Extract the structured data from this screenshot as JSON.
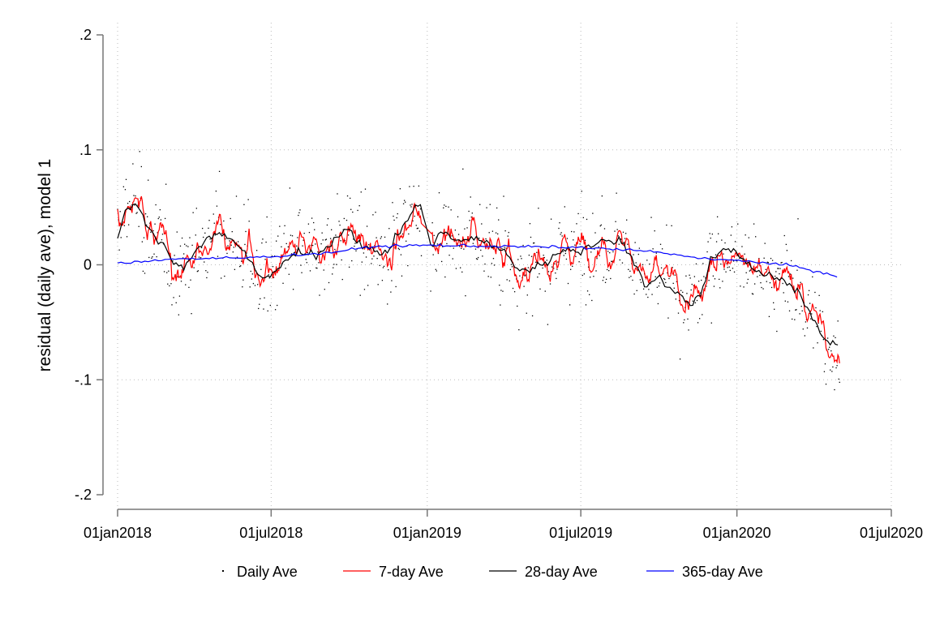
{
  "chart_data": {
    "type": "line",
    "title": "",
    "xlabel": "",
    "ylabel": "residual (daily ave), model 1",
    "x_range": [
      "2018-01-01",
      "2020-07-01"
    ],
    "ylim": [
      -0.2,
      0.2
    ],
    "x_ticks": [
      {
        "date": "2018-01-01",
        "label": "01jan2018"
      },
      {
        "date": "2018-07-01",
        "label": "01jul2018"
      },
      {
        "date": "2019-01-01",
        "label": "01jan2019"
      },
      {
        "date": "2019-07-01",
        "label": "01jul2019"
      },
      {
        "date": "2020-01-01",
        "label": "01jan2020"
      },
      {
        "date": "2020-07-01",
        "label": "01jul2020"
      }
    ],
    "y_ticks": [
      {
        "value": -0.2,
        "label": "-.2"
      },
      {
        "value": -0.1,
        "label": "-.1"
      },
      {
        "value": 0,
        "label": "0"
      },
      {
        "value": 0.1,
        "label": ".1"
      },
      {
        "value": 0.2,
        "label": ".2"
      }
    ],
    "grid": true,
    "legend_position": "bottom",
    "colors": {
      "daily": "#000000",
      "ma7": "#ff0000",
      "ma28": "#000000",
      "ma365": "#0000ff",
      "grid": "#bbbbbb",
      "axis": "#777777"
    },
    "series": [
      {
        "name": "28-day Ave",
        "style": "line",
        "points": [
          [
            "2018-01-01",
            0.023
          ],
          [
            "2018-01-10",
            0.045
          ],
          [
            "2018-01-20",
            0.055
          ],
          [
            "2018-02-01",
            0.04
          ],
          [
            "2018-02-15",
            0.025
          ],
          [
            "2018-03-01",
            0.012
          ],
          [
            "2018-03-15",
            -0.005
          ],
          [
            "2018-04-01",
            0.008
          ],
          [
            "2018-04-15",
            0.022
          ],
          [
            "2018-05-01",
            0.028
          ],
          [
            "2018-05-15",
            0.02
          ],
          [
            "2018-06-01",
            0.012
          ],
          [
            "2018-06-15",
            -0.008
          ],
          [
            "2018-07-01",
            -0.012
          ],
          [
            "2018-07-15",
            0.002
          ],
          [
            "2018-08-01",
            0.01
          ],
          [
            "2018-08-15",
            0.008
          ],
          [
            "2018-09-01",
            0.012
          ],
          [
            "2018-09-15",
            0.025
          ],
          [
            "2018-10-01",
            0.032
          ],
          [
            "2018-10-15",
            0.018
          ],
          [
            "2018-11-01",
            0.01
          ],
          [
            "2018-11-15",
            0.012
          ],
          [
            "2018-12-01",
            0.03
          ],
          [
            "2018-12-15",
            0.048
          ],
          [
            "2018-12-25",
            0.052
          ],
          [
            "2019-01-05",
            0.014
          ],
          [
            "2019-01-15",
            0.03
          ],
          [
            "2019-02-01",
            0.022
          ],
          [
            "2019-02-15",
            0.02
          ],
          [
            "2019-03-01",
            0.024
          ],
          [
            "2019-03-15",
            0.018
          ],
          [
            "2019-04-01",
            0.012
          ],
          [
            "2019-04-15",
            -0.002
          ],
          [
            "2019-05-01",
            -0.005
          ],
          [
            "2019-05-15",
            0.0
          ],
          [
            "2019-06-01",
            0.008
          ],
          [
            "2019-06-15",
            0.015
          ],
          [
            "2019-07-01",
            0.012
          ],
          [
            "2019-07-15",
            0.018
          ],
          [
            "2019-08-01",
            0.02
          ],
          [
            "2019-08-15",
            0.022
          ],
          [
            "2019-09-01",
            0.005
          ],
          [
            "2019-09-15",
            -0.018
          ],
          [
            "2019-10-01",
            -0.01
          ],
          [
            "2019-10-15",
            -0.022
          ],
          [
            "2019-11-01",
            -0.03
          ],
          [
            "2019-11-10",
            -0.034
          ],
          [
            "2019-11-20",
            -0.025
          ],
          [
            "2019-12-01",
            0.005
          ],
          [
            "2019-12-15",
            0.015
          ],
          [
            "2020-01-01",
            0.01
          ],
          [
            "2020-01-15",
            -0.002
          ],
          [
            "2020-02-01",
            -0.008
          ],
          [
            "2020-02-15",
            -0.01
          ],
          [
            "2020-03-01",
            -0.015
          ],
          [
            "2020-03-15",
            -0.025
          ],
          [
            "2020-04-01",
            -0.05
          ],
          [
            "2020-04-15",
            -0.068
          ],
          [
            "2020-04-25",
            -0.066
          ],
          [
            "2020-05-01",
            -0.075
          ]
        ]
      },
      {
        "name": "365-day Ave",
        "style": "line",
        "points": [
          [
            "2018-01-01",
            0.001
          ],
          [
            "2018-03-01",
            0.005
          ],
          [
            "2018-06-01",
            0.006
          ],
          [
            "2018-09-01",
            0.01
          ],
          [
            "2018-11-01",
            0.016
          ],
          [
            "2019-01-01",
            0.017
          ],
          [
            "2019-04-01",
            0.016
          ],
          [
            "2019-07-01",
            0.015
          ],
          [
            "2019-09-15",
            0.012
          ],
          [
            "2019-12-01",
            0.005
          ],
          [
            "2020-02-01",
            0.002
          ],
          [
            "2020-03-15",
            -0.002
          ],
          [
            "2020-05-01",
            -0.011
          ]
        ]
      }
    ],
    "legend": [
      {
        "name": "Daily Ave",
        "style": "dot"
      },
      {
        "name": "7-day Ave",
        "style": "line"
      },
      {
        "name": "28-day Ave",
        "style": "line"
      },
      {
        "name": "365-day Ave",
        "style": "line"
      }
    ]
  }
}
